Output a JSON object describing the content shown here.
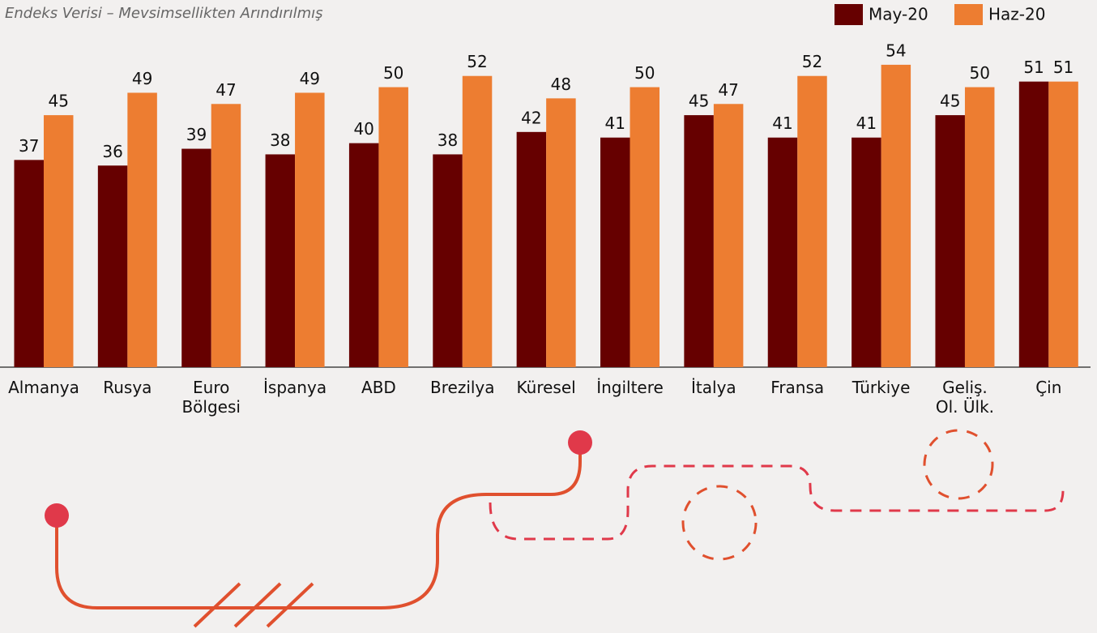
{
  "chart_data": {
    "type": "bar",
    "title": "Endeks Verisi – Mevsimsellikten Arındırılmış",
    "categories": [
      "Almanya",
      "Rusya",
      "Euro\nBölgesi",
      "İspanya",
      "ABD",
      "Brezilya",
      "Küresel",
      "İngiltere",
      "İtalya",
      "Fransa",
      "Türkiye",
      "Geliş.\nOl. Ülk.",
      "Çin"
    ],
    "series": [
      {
        "name": "May-20",
        "color": "#660000",
        "values": [
          37,
          36,
          39,
          38,
          40,
          38,
          42,
          41,
          45,
          41,
          41,
          45,
          51
        ]
      },
      {
        "name": "Haz-20",
        "color": "#ed7d31",
        "values": [
          45,
          49,
          47,
          49,
          50,
          52,
          48,
          50,
          47,
          52,
          54,
          50,
          51
        ]
      }
    ],
    "ylim": [
      0,
      55
    ],
    "legend": "top-right"
  }
}
